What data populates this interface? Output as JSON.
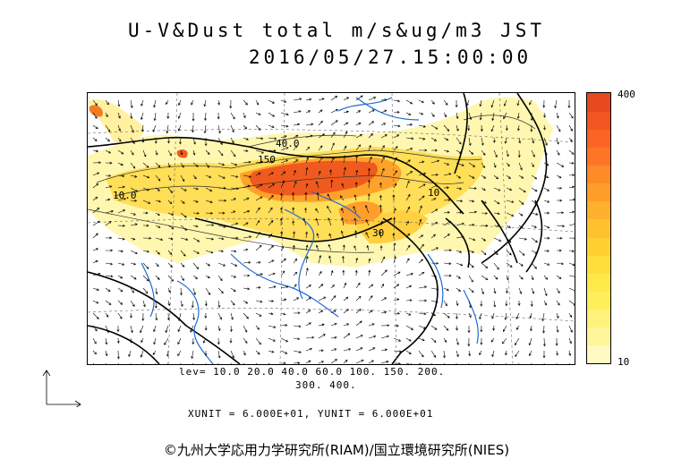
{
  "title": {
    "line1": "U-V&Dust total m/s&ug/m3 JST",
    "line2": "2016/05/27.15:00:00"
  },
  "colorbar": {
    "max_label": "400",
    "min_label": "10",
    "colors": [
      "#fff9c4",
      "#fff59a",
      "#fff27a",
      "#ffee5c",
      "#ffe84a",
      "#ffdd3a",
      "#ffd030",
      "#ffc22e",
      "#ffb02c",
      "#ff9e2a",
      "#ff8a28",
      "#ff7526",
      "#fb6424",
      "#f05522",
      "#e64a1e"
    ]
  },
  "levels": {
    "line1": "lev= 10.0 20.0 40.0 60.0 100. 150. 200.",
    "line2": "300. 400."
  },
  "units": "XUNIT = 6.000E+01, YUNIT = 6.000E+01",
  "credit": "©九州大学応用力学研究所(RIAM)/国立環境研究所(NIES)",
  "map": {
    "contour_labels": [
      "10.0",
      "40.0",
      "150",
      "10",
      "30"
    ],
    "colors": {
      "land_outline": "#000000",
      "rivers": "#1f6bd6",
      "dust_low": "#fff7b0",
      "dust_mid": "#ffd84a",
      "dust_high": "#ff8a1e",
      "dust_peak": "#e85a1c"
    }
  }
}
